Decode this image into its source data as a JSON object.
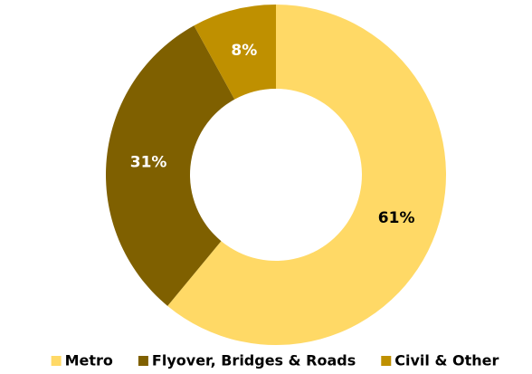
{
  "chart_data": {
    "type": "donut",
    "categories": [
      "Metro",
      "Flyover, Bridges & Roads",
      "Civil & Other"
    ],
    "values": [
      61,
      31,
      8
    ],
    "value_labels": [
      "61%",
      "31%",
      "8%"
    ],
    "colors": [
      "#FFD966",
      "#7F6000",
      "#BF9000"
    ],
    "legend": "bottom"
  }
}
